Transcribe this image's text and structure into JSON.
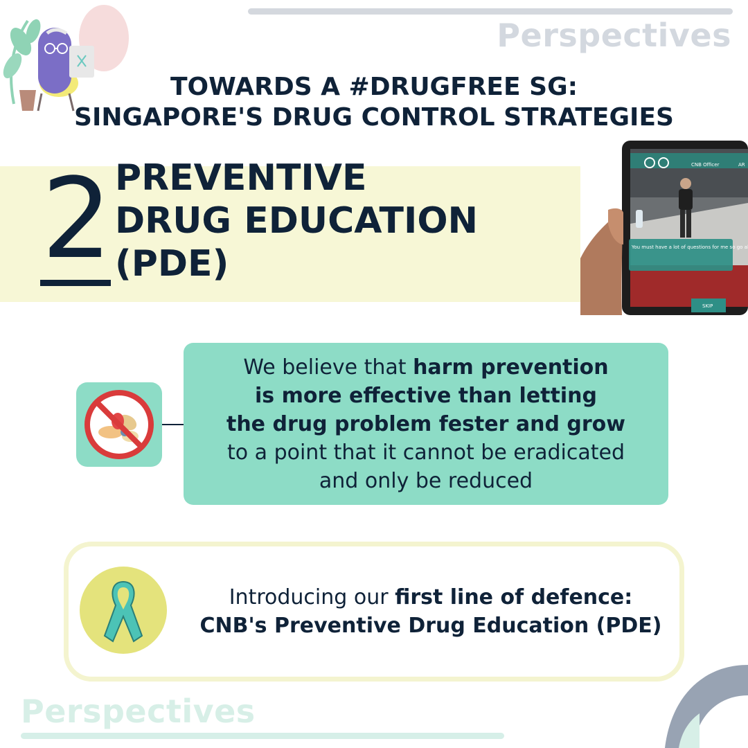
{
  "brand": {
    "top": "Perspectives",
    "bottom": "Perspectives"
  },
  "title": {
    "line1": "TOWARDS A #DRUGFREE SG:",
    "line2": "SINGAPORE'S DRUG CONTROL STRATEGIES"
  },
  "section": {
    "number": "2",
    "title_line1": "PREVENTIVE",
    "title_line2": "DRUG EDUCATION",
    "title_line3": "(PDE)"
  },
  "tablet": {
    "header_label": "CNB Officer",
    "corner_label": "AR",
    "dialog": "You must have a lot of questions for me so go ahead, fire away!",
    "skip_label": "SKIP"
  },
  "belief": {
    "lead": "We believe that ",
    "bold1": "harm prevention",
    "bold2": "is more effective than letting",
    "bold3": "the drug problem fester and grow",
    "tail1": "to a point that it cannot be eradicated",
    "tail2": "and only be reduced"
  },
  "intro": {
    "lead": "Introducing our ",
    "bold1": "first line of defence:",
    "line2": "CNB's Preventive Drug Education (PDE)"
  },
  "colors": {
    "navy": "#0f2238",
    "mint": "#8ddcc6",
    "cream": "#f7f7d6",
    "yellow": "#e4e37c",
    "teal_ribbon": "#4cc3b6"
  }
}
